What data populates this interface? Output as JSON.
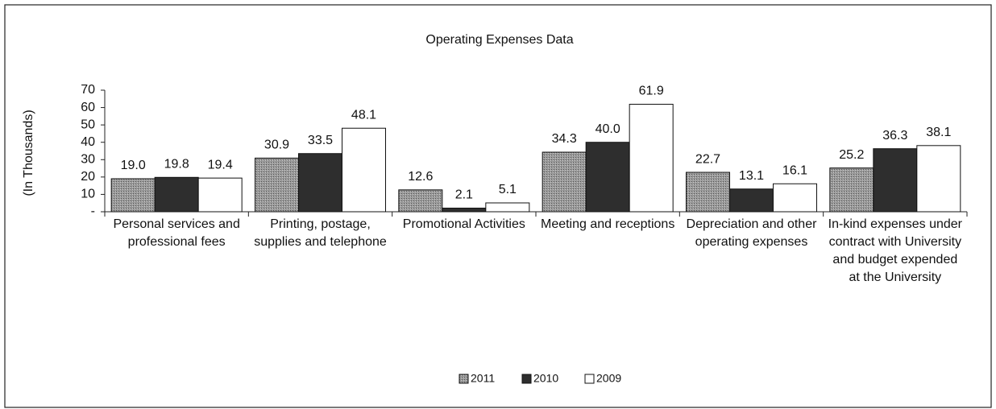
{
  "chart_data": {
    "type": "bar",
    "title": "Operating Expenses Data",
    "y_label": "(In Thousands)",
    "categories": [
      "Personal services and professional fees",
      "Printing, postage, supplies and telephone",
      "Promotional Activities",
      "Meeting and receptions",
      "Depreciation and other operating expenses",
      "In-kind expenses under contract with University and budget expended at the University"
    ],
    "series": [
      {
        "name": "2011",
        "color": "#9a9a9a",
        "values": [
          19.0,
          30.9,
          12.6,
          34.3,
          22.7,
          25.2
        ],
        "value_labels": [
          "19.0",
          "30.9",
          "12.6",
          "34.3",
          "22.7",
          "25.2"
        ]
      },
      {
        "name": "2010",
        "color": "#2e2e2e",
        "values": [
          19.8,
          33.5,
          2.1,
          40.0,
          13.1,
          36.3
        ],
        "value_labels": [
          "19.8",
          "33.5",
          "2.1",
          "40.0",
          "13.1",
          "36.3"
        ]
      },
      {
        "name": "2009",
        "color": "#ffffff",
        "values": [
          19.4,
          48.1,
          5.1,
          61.9,
          16.1,
          38.1
        ],
        "value_labels": [
          "19.4",
          "48.1",
          "5.1",
          "61.9",
          "16.1",
          "38.1"
        ]
      }
    ],
    "ylim": [
      0,
      70
    ],
    "yticks": [
      {
        "value": 0,
        "label": "-"
      },
      10,
      20,
      30,
      40,
      50,
      60,
      70
    ],
    "legend": "bottom"
  }
}
